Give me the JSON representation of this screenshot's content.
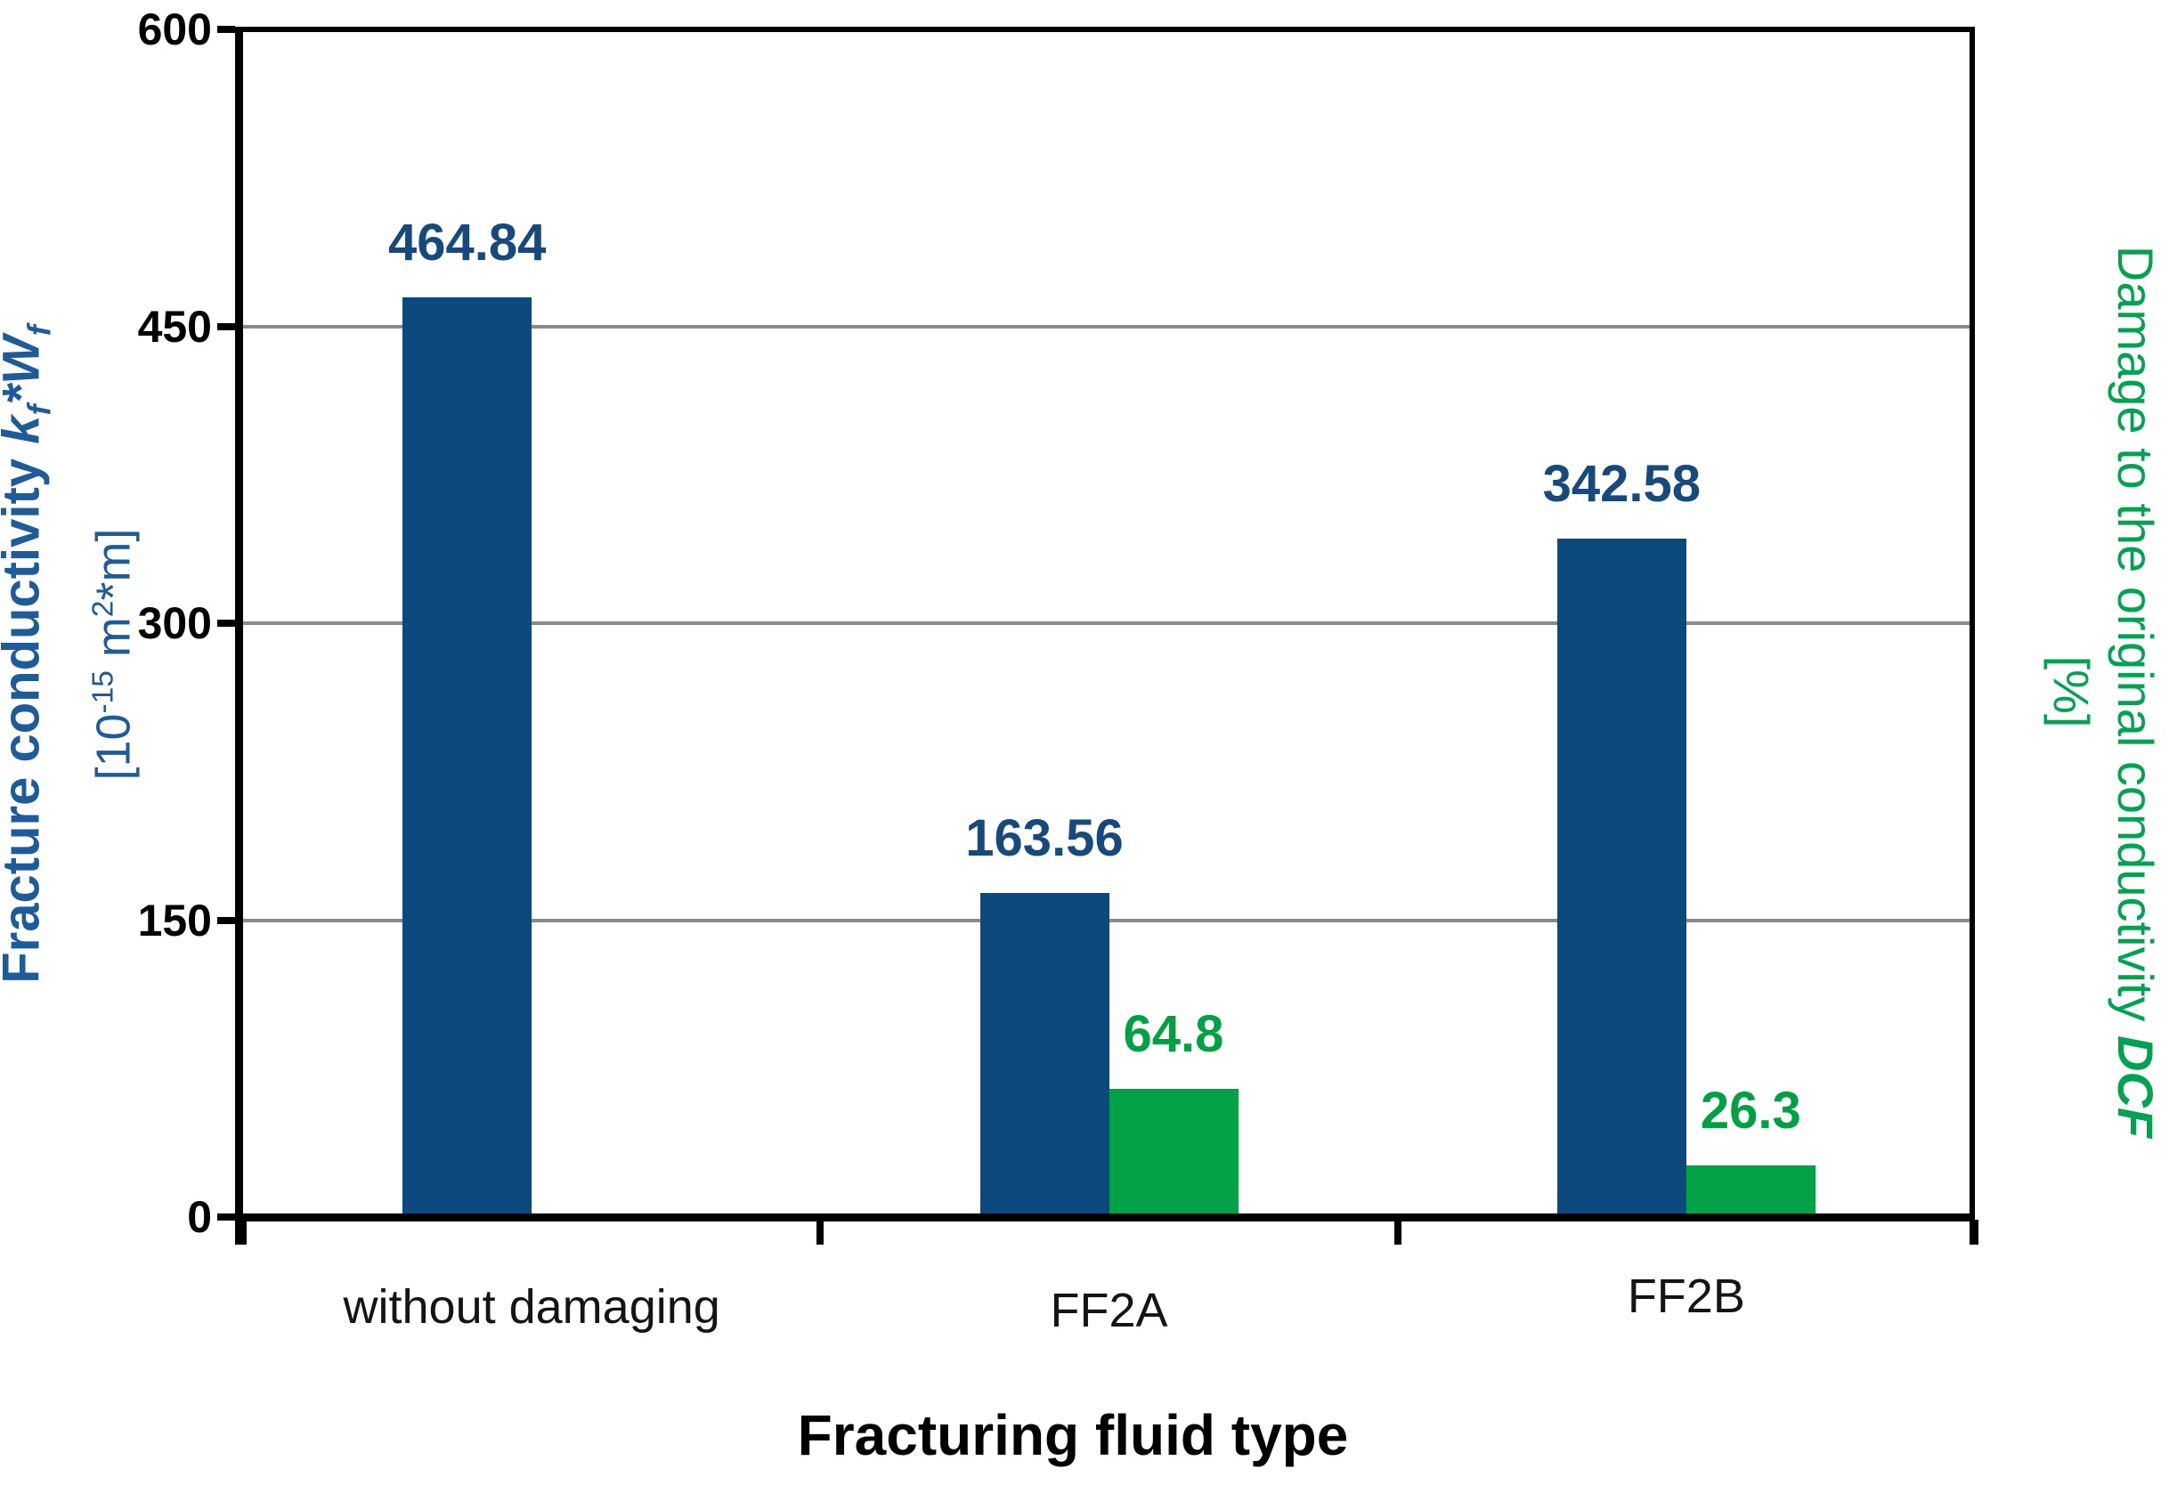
{
  "figure": {
    "background": "#ffffff",
    "axis_color": "#000000"
  },
  "chart_data": {
    "type": "bar",
    "title": "",
    "categories": [
      "without damaging",
      "FF2A",
      "FF2B"
    ],
    "x_axis": {
      "label": "Fracturing fluid type"
    },
    "y_axis_left": {
      "title": "Fracture conductivity kf*Wf",
      "title_text": "Fracture conductivity",
      "title_var": {
        "v1": "k",
        "s1": "f",
        "v2": "*W",
        "s2": "f"
      },
      "unit_parts": {
        "open": "[10",
        "exp": "-15",
        "mid": " m",
        "exp2": "2",
        "close": "*m]"
      },
      "min": 0,
      "max": 600,
      "ticks": [
        0,
        150,
        300,
        450,
        600
      ],
      "tick_labels": [
        "0",
        "150",
        "300",
        "450",
        "600"
      ],
      "title_color": "#1e5b9b"
    },
    "y_axis_right": {
      "title": "Damage to the original conductivity DCF",
      "title_text": "Damage to the original conductivity",
      "title_var": "DCF",
      "unit": "[%]",
      "title_color": "#00a350"
    },
    "series": [
      {
        "name": "Fracture conductivity kf*Wf [10^-15 m2*m]",
        "axis": "left",
        "color": "#0c4a7e",
        "label_color": "#164a7d",
        "values": [
          464.84,
          163.56,
          342.58
        ],
        "value_labels": [
          "464.84",
          "163.56",
          "342.58"
        ]
      },
      {
        "name": "Damage to the original conductivity DCF [%]",
        "axis": "right",
        "color": "#02a246",
        "label_color": "#00a143",
        "values": [
          null,
          64.8,
          26.3
        ],
        "value_labels": [
          null,
          "64.8",
          "26.3"
        ]
      }
    ],
    "grid": {
      "horizontal": true,
      "color": "#8a8a8a"
    },
    "legend": "none",
    "ylim_left": [
      0,
      600
    ]
  }
}
